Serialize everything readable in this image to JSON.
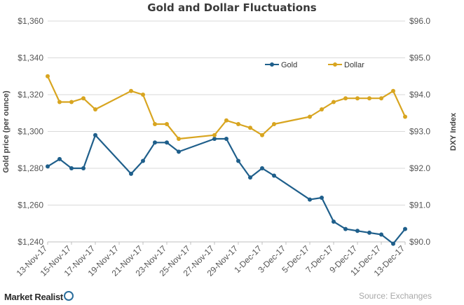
{
  "chart_data": {
    "type": "line",
    "title": "Gold and Dollar Fluctuations",
    "ylabel_left": "Gold price (per ounce)",
    "ylabel_right": "DXY Index",
    "ylim_left": [
      1240,
      1360
    ],
    "ylim_right": [
      90.0,
      96.0
    ],
    "yticks_left": [
      1240,
      1260,
      1280,
      1300,
      1320,
      1340,
      1360
    ],
    "yticks_left_labels": [
      "$1,240",
      "$1,260",
      "$1,280",
      "$1,300",
      "$1,320",
      "$1,340",
      "$1,360"
    ],
    "yticks_right": [
      90,
      91,
      92,
      93,
      94,
      95,
      96
    ],
    "yticks_right_labels": [
      "$90.0",
      "$91.0",
      "$92.0",
      "$93.0",
      "$94.0",
      "$95.0",
      "$96.0"
    ],
    "x_days_range": [
      0,
      30
    ],
    "x_tick_days": [
      0,
      2,
      4,
      6,
      8,
      10,
      12,
      14,
      16,
      18,
      20,
      22,
      24,
      26,
      28,
      30
    ],
    "x_tick_labels": [
      "13-Nov-17",
      "15-Nov-17",
      "17-Nov-17",
      "19-Nov-17",
      "21-Nov-17",
      "23-Nov-17",
      "25-Nov-17",
      "27-Nov-17",
      "29-Nov-17",
      "1-Dec-17",
      "3-Dec-17",
      "5-Dec-17",
      "7-Dec-17",
      "9-Dec-17",
      "11-Dec-17",
      "13-Dec-17"
    ],
    "series": [
      {
        "name": "Gold",
        "axis": "left",
        "color": "#1f5f8b",
        "x": [
          0,
          1,
          2,
          3,
          4,
          7,
          8,
          9,
          10,
          11,
          14,
          15,
          16,
          17,
          18,
          19,
          22,
          23,
          24,
          25,
          26,
          27,
          28,
          29,
          30
        ],
        "values": [
          1281,
          1285,
          1280,
          1280,
          1298,
          1277,
          1284,
          1294,
          1294,
          1289,
          1296,
          1296,
          1284,
          1275,
          1280,
          1276,
          1263,
          1264,
          1251,
          1247,
          1246,
          1245,
          1244,
          1239,
          1247
        ]
      },
      {
        "name": "Dollar",
        "axis": "right",
        "color": "#d8a520",
        "x": [
          0,
          1,
          2,
          3,
          4,
          7,
          8,
          9,
          10,
          11,
          14,
          15,
          16,
          17,
          18,
          19,
          22,
          23,
          24,
          25,
          26,
          27,
          28,
          29,
          30
        ],
        "values": [
          94.5,
          93.8,
          93.8,
          93.9,
          93.6,
          94.1,
          94.0,
          93.2,
          93.2,
          92.8,
          92.9,
          93.3,
          93.2,
          93.1,
          92.9,
          93.2,
          93.4,
          93.6,
          93.8,
          93.9,
          93.9,
          93.9,
          93.9,
          94.1,
          93.4
        ]
      }
    ]
  },
  "legend": {
    "gold_label": "Gold",
    "dollar_label": "Dollar"
  },
  "footer": {
    "brand": "Market Realist",
    "source": "Source: Exchanges"
  },
  "colors": {
    "gold_line": "#1f5f8b",
    "dollar_line": "#d8a520",
    "grid": "#d9d9d9"
  }
}
